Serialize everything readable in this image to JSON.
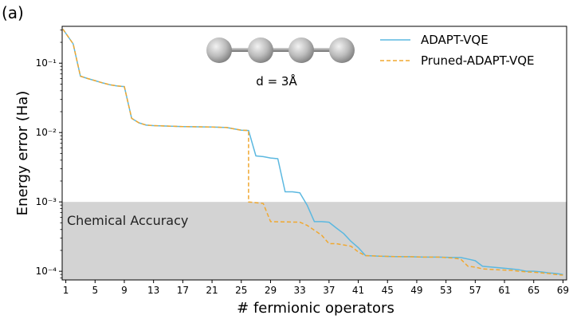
{
  "panel_label": "(a)",
  "chart_data": {
    "type": "line",
    "xlabel": "# fermionic operators",
    "ylabel": "Energy error (Ha)",
    "xlim": [
      0.5,
      69.5
    ],
    "ylim": [
      7.5e-05,
      0.34
    ],
    "yscale": "log",
    "x_ticks": [
      1,
      5,
      9,
      13,
      17,
      21,
      25,
      29,
      33,
      37,
      41,
      45,
      49,
      53,
      57,
      61,
      65,
      69
    ],
    "y_ticks": [
      {
        "value": 0.1,
        "label": "10⁻¹"
      },
      {
        "value": 0.01,
        "label": "10⁻²"
      },
      {
        "value": 0.001,
        "label": "10⁻³"
      },
      {
        "value": 0.0001,
        "label": "10⁻⁴"
      }
    ],
    "grid": false,
    "legend_position": "top-right",
    "shaded_region": {
      "y_from": 7.5e-05,
      "y_to": 0.001,
      "label": "Chemical Accuracy",
      "color": "#d3d3d3"
    },
    "annotation": "d = 3Å",
    "series": [
      {
        "name": "ADAPT-VQE",
        "color": "#5bb8e0",
        "dash": "solid",
        "x": [
          0.6,
          2,
          3,
          4,
          5,
          6,
          7,
          8,
          9,
          10,
          11,
          12,
          13,
          15,
          17,
          19,
          21,
          23,
          25,
          26,
          27,
          28,
          29,
          30,
          31,
          32,
          33,
          34,
          35,
          36,
          37,
          38,
          39,
          40,
          41,
          42,
          44,
          46,
          48,
          50,
          52,
          54,
          55,
          56,
          57,
          58,
          60,
          62,
          63,
          64,
          65,
          66,
          67,
          68,
          69
        ],
        "y": [
          0.31,
          0.19,
          0.065,
          0.06,
          0.056,
          0.052,
          0.049,
          0.047,
          0.046,
          0.016,
          0.0138,
          0.0128,
          0.0126,
          0.0124,
          0.0122,
          0.0121,
          0.012,
          0.0118,
          0.0108,
          0.0107,
          0.0046,
          0.0045,
          0.0043,
          0.0042,
          0.0014,
          0.0014,
          0.00135,
          0.0009,
          0.00052,
          0.00052,
          0.00051,
          0.00042,
          0.00035,
          0.00027,
          0.00022,
          0.000168,
          0.000165,
          0.000163,
          0.000162,
          0.00016,
          0.00016,
          0.000158,
          0.000158,
          0.00015,
          0.000142,
          0.000118,
          0.000113,
          0.000108,
          0.000105,
          0.0001,
          0.0001,
          9.8e-05,
          9.5e-05,
          9.3e-05,
          9e-05
        ]
      },
      {
        "name": "Pruned-ADAPT-VQE",
        "color": "#f0a830",
        "dash": "dashed",
        "x": [
          0.6,
          2,
          3,
          4,
          5,
          6,
          7,
          8,
          9,
          10,
          11,
          12,
          13,
          15,
          17,
          19,
          21,
          23,
          25,
          26,
          26,
          28,
          29,
          33,
          34,
          35,
          36,
          37,
          38,
          39,
          40,
          41,
          42,
          44,
          46,
          48,
          50,
          52,
          54,
          55,
          56,
          57,
          58,
          60,
          62,
          63,
          64,
          65,
          66,
          67,
          68,
          69
        ],
        "y": [
          0.31,
          0.19,
          0.065,
          0.06,
          0.056,
          0.052,
          0.049,
          0.047,
          0.046,
          0.016,
          0.0138,
          0.0128,
          0.0126,
          0.0124,
          0.0122,
          0.0121,
          0.012,
          0.0118,
          0.0108,
          0.0107,
          0.001,
          0.00095,
          0.00052,
          0.00051,
          0.00046,
          0.00039,
          0.00033,
          0.00025,
          0.00025,
          0.00024,
          0.00023,
          0.00019,
          0.000168,
          0.000165,
          0.000163,
          0.000162,
          0.00016,
          0.00016,
          0.000155,
          0.00015,
          0.000118,
          0.000115,
          0.000108,
          0.000105,
          0.000103,
          0.0001,
          9.8e-05,
          9.7e-05,
          9.5e-05,
          9.3e-05,
          9e-05,
          8.8e-05
        ]
      }
    ]
  },
  "icons": {
    "molecule": "linear-four-atom-chain"
  }
}
